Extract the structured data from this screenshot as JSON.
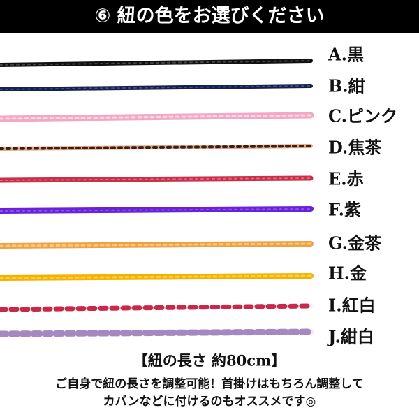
{
  "header": {
    "title": "⑥ 紐の色をお選びください"
  },
  "options": [
    {
      "label": "A.黒"
    },
    {
      "label": "B.紺"
    },
    {
      "label": "C.ピンク"
    },
    {
      "label": "D.焦茶"
    },
    {
      "label": "E.赤"
    },
    {
      "label": "F.紫"
    },
    {
      "label": "G.金茶"
    },
    {
      "label": "H.金"
    },
    {
      "label": "I.紅白"
    },
    {
      "label": "J.紺白"
    }
  ],
  "footer": {
    "length": "【紐の長さ 約80cm】",
    "lines": [
      "ご自身で紐の長さを調整可能！首掛けはもちろん調整して",
      "カバンなどに付けるのもオススメです◎"
    ]
  }
}
